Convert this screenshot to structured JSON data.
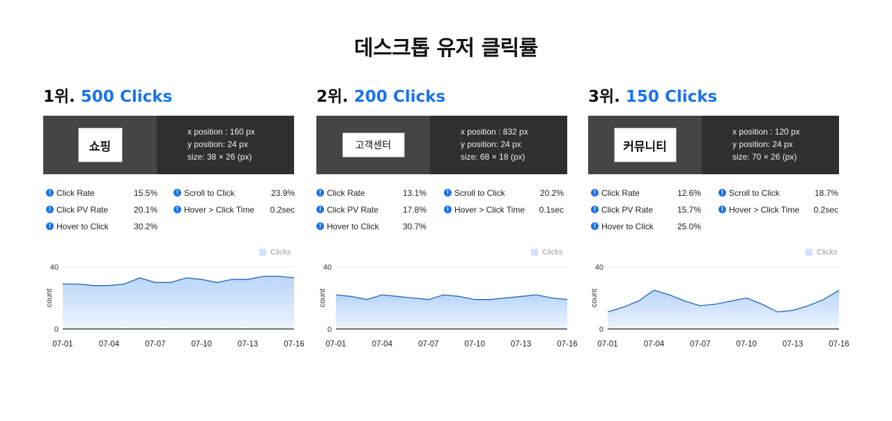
{
  "page_title": "데스크톱 유저 클릭률",
  "accent": "#1a73e8",
  "cards": [
    {
      "rank": "1위.",
      "clicks": "500 Clicks",
      "element_label": "쇼핑",
      "x_position": "x position :  160 px",
      "y_position": "y position: 24 px",
      "size": "size: 38 × 26 (px)",
      "metrics": {
        "click_rate": {
          "label": "Click Rate",
          "value": "15.5%"
        },
        "click_pv_rate": {
          "label": "Click PV Rate",
          "value": "20.1%"
        },
        "hover_to_click": {
          "label": "Hover to Click",
          "value": "30.2%"
        },
        "scroll_to_click": {
          "label": "Scroll to Click",
          "value": "23.9%"
        },
        "hover_click_time": {
          "label": "Hover > Click Time",
          "value": "0.2sec"
        }
      },
      "chart_data": {
        "type": "area",
        "legend": "Clicks",
        "ylabel": "count",
        "y_ticks": [
          "0",
          "40"
        ],
        "ylim": [
          0,
          40
        ],
        "x_tick_labels": [
          "07-01",
          "07-04",
          "07-07",
          "07-10",
          "07-13",
          "07-16"
        ],
        "x": [
          "07-01",
          "07-02",
          "07-03",
          "07-04",
          "07-05",
          "07-06",
          "07-07",
          "07-08",
          "07-09",
          "07-10",
          "07-11",
          "07-12",
          "07-13",
          "07-14",
          "07-15",
          "07-16"
        ],
        "series": [
          {
            "name": "Clicks",
            "values": [
              29,
              29,
              28,
              28,
              29,
              33,
              30,
              30,
              33,
              32,
              30,
              32,
              32,
              34,
              34,
              33
            ]
          }
        ]
      }
    },
    {
      "rank": "2위.",
      "clicks": "200 Clicks",
      "element_label": "고객센터",
      "x_position": "x position :  832 px",
      "y_position": "y position: 24 px",
      "size": "size: 68 × 18 (px)",
      "metrics": {
        "click_rate": {
          "label": "Click Rate",
          "value": "13.1%"
        },
        "click_pv_rate": {
          "label": "Click PV Rate",
          "value": "17.8%"
        },
        "hover_to_click": {
          "label": "Hover to Click",
          "value": "30.7%"
        },
        "scroll_to_click": {
          "label": "Scroll to Click",
          "value": "20.2%"
        },
        "hover_click_time": {
          "label": "Hover > Click Time",
          "value": "0.1sec"
        }
      },
      "chart_data": {
        "type": "area",
        "legend": "Clicks",
        "ylabel": "count",
        "y_ticks": [
          "0",
          "40"
        ],
        "ylim": [
          0,
          40
        ],
        "x_tick_labels": [
          "07-01",
          "07-04",
          "07-07",
          "07-10",
          "07-13",
          "07-16"
        ],
        "x": [
          "07-01",
          "07-02",
          "07-03",
          "07-04",
          "07-05",
          "07-06",
          "07-07",
          "07-08",
          "07-09",
          "07-10",
          "07-11",
          "07-12",
          "07-13",
          "07-14",
          "07-15",
          "07-16"
        ],
        "series": [
          {
            "name": "Clicks",
            "values": [
              22,
              21,
              19,
              22,
              21,
              20,
              19,
              22,
              21,
              19,
              19,
              20,
              21,
              22,
              20,
              19
            ]
          }
        ]
      }
    },
    {
      "rank": "3위.",
      "clicks": "150 Clicks",
      "element_label": "커뮤니티",
      "x_position": "x position :  120 px",
      "y_position": "y position: 24 px",
      "size": "size: 70 × 26 (px)",
      "metrics": {
        "click_rate": {
          "label": "Click Rate",
          "value": "12.6%"
        },
        "click_pv_rate": {
          "label": "Click PV Rate",
          "value": "15.7%"
        },
        "hover_to_click": {
          "label": "Hover to Click",
          "value": "25.0%"
        },
        "scroll_to_click": {
          "label": "Scroll to Click",
          "value": "18.7%"
        },
        "hover_click_time": {
          "label": "Hover > Click Time",
          "value": "0.2sec"
        }
      },
      "chart_data": {
        "type": "area",
        "legend": "Clicks",
        "ylabel": "count",
        "y_ticks": [
          "0",
          "40"
        ],
        "ylim": [
          0,
          40
        ],
        "x_tick_labels": [
          "07-01",
          "07-04",
          "07-07",
          "07-10",
          "07-13",
          "07-16"
        ],
        "x": [
          "07-01",
          "07-02",
          "07-03",
          "07-04",
          "07-05",
          "07-06",
          "07-07",
          "07-08",
          "07-09",
          "07-10",
          "07-11",
          "07-12",
          "07-13",
          "07-14",
          "07-15",
          "07-16"
        ],
        "series": [
          {
            "name": "Clicks",
            "values": [
              11,
              14,
              18,
              25,
              22,
              18,
              15,
              16,
              18,
              20,
              16,
              11,
              12,
              15,
              19,
              25
            ]
          }
        ]
      }
    }
  ]
}
